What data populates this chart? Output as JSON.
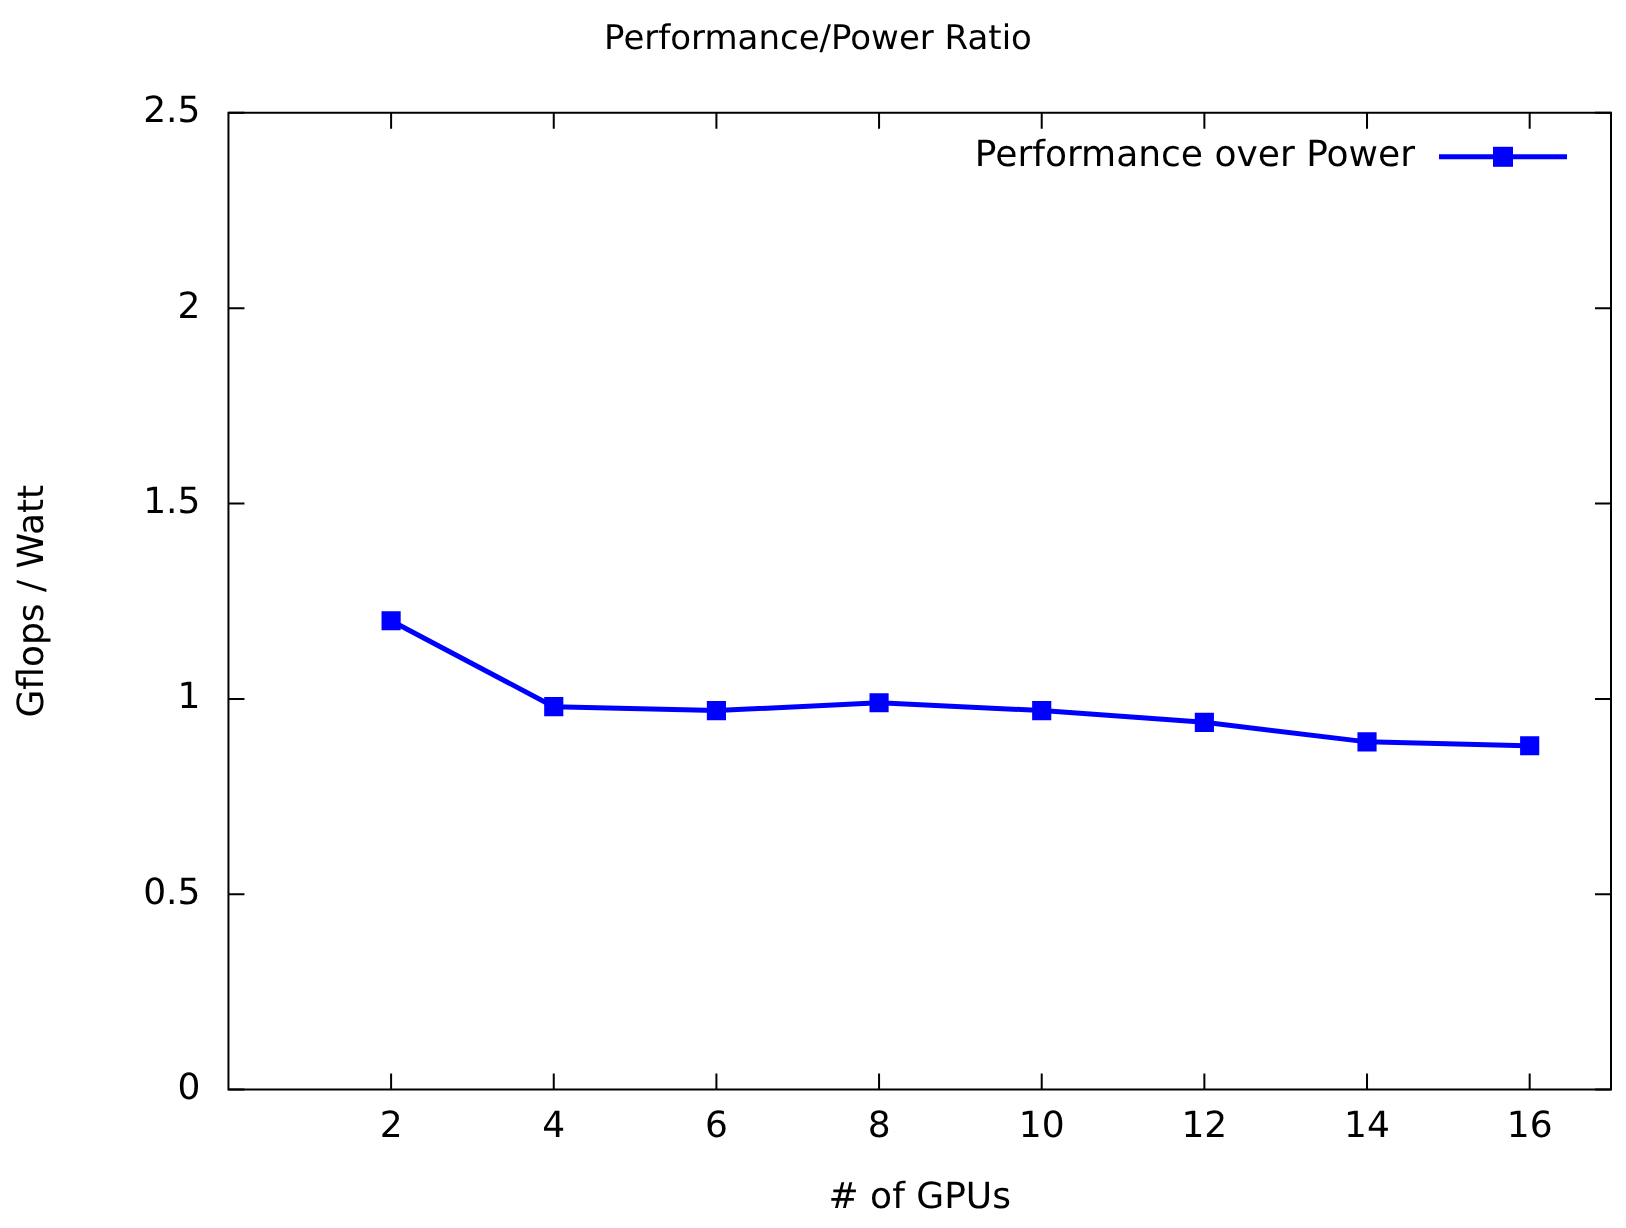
{
  "chart_data": {
    "type": "line",
    "title": "Performance/Power Ratio",
    "xlabel": "# of GPUs",
    "ylabel": "Gflops / Watt",
    "x": [
      2,
      4,
      6,
      8,
      10,
      12,
      14,
      16
    ],
    "series": [
      {
        "name": "Performance over Power",
        "color": "#0000ff",
        "values": [
          1.2,
          0.98,
          0.97,
          0.99,
          0.97,
          0.94,
          0.89,
          0.88
        ]
      }
    ],
    "xlim": [
      0,
      17
    ],
    "xticks": [
      2,
      4,
      6,
      8,
      10,
      12,
      14,
      16
    ],
    "ylim": [
      0,
      2.5
    ],
    "yticks": [
      0,
      0.5,
      1,
      1.5,
      2,
      2.5
    ],
    "grid": false,
    "legend": "top right",
    "marker": "square",
    "line_style": "solid"
  }
}
